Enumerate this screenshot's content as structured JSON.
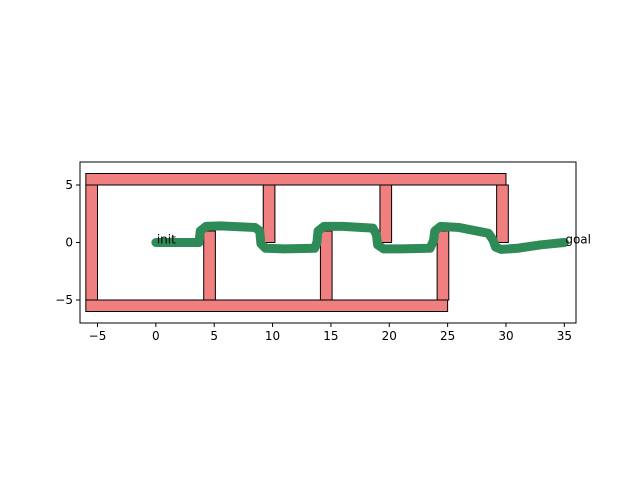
{
  "chart_data": {
    "type": "path-plan",
    "xlim": [
      -6.5,
      36
    ],
    "ylim": [
      -7,
      7
    ],
    "grid": false,
    "x_ticks": [
      -5,
      0,
      5,
      10,
      15,
      20,
      25,
      30,
      35
    ],
    "y_ticks": [
      -5,
      0,
      5
    ],
    "x_tick_labels": [
      "−5",
      "0",
      "5",
      "10",
      "15",
      "20",
      "25",
      "30",
      "35"
    ],
    "y_tick_labels": [
      "−5",
      "0",
      "5"
    ],
    "obstacle_color": "#f08080",
    "path_color": "#2e8b57",
    "obstacles": [
      {
        "x0": -6,
        "y0": 5,
        "x1": 30,
        "y1": 6
      },
      {
        "x0": -6,
        "y0": -6,
        "x1": 25,
        "y1": -5
      },
      {
        "x0": -6,
        "y0": -5,
        "x1": -5,
        "y1": 5
      },
      {
        "x0": 9.2,
        "y0": 0,
        "x1": 10.2,
        "y1": 5
      },
      {
        "x0": 19.2,
        "y0": 0,
        "x1": 20.2,
        "y1": 5
      },
      {
        "x0": 29.2,
        "y0": 0,
        "x1": 30.2,
        "y1": 5
      },
      {
        "x0": 4.1,
        "y0": -5,
        "x1": 5.1,
        "y1": 1
      },
      {
        "x0": 14.1,
        "y0": -5,
        "x1": 15.1,
        "y1": 1
      },
      {
        "x0": 24.1,
        "y0": -5,
        "x1": 25.1,
        "y1": 1
      }
    ],
    "path": [
      [
        0,
        0
      ],
      [
        3.7,
        0
      ],
      [
        3.8,
        1.0
      ],
      [
        4.3,
        1.4
      ],
      [
        5.5,
        1.45
      ],
      [
        8.5,
        1.3
      ],
      [
        8.9,
        1.0
      ],
      [
        9.0,
        -0.1
      ],
      [
        9.4,
        -0.5
      ],
      [
        11,
        -0.55
      ],
      [
        13.6,
        -0.5
      ],
      [
        13.8,
        0.0
      ],
      [
        13.9,
        1.0
      ],
      [
        14.4,
        1.4
      ],
      [
        16,
        1.4
      ],
      [
        18.6,
        1.25
      ],
      [
        18.9,
        0.7
      ],
      [
        19.0,
        -0.2
      ],
      [
        19.5,
        -0.55
      ],
      [
        21,
        -0.55
      ],
      [
        23.5,
        -0.5
      ],
      [
        23.8,
        0.2
      ],
      [
        23.9,
        1.0
      ],
      [
        24.4,
        1.4
      ],
      [
        26,
        1.3
      ],
      [
        28.5,
        0.8
      ],
      [
        28.9,
        0.2
      ],
      [
        29.1,
        -0.4
      ],
      [
        29.6,
        -0.6
      ],
      [
        31,
        -0.5
      ],
      [
        33,
        -0.2
      ],
      [
        35,
        0.0
      ]
    ],
    "annotations": [
      {
        "text": "init",
        "x": 0,
        "y": 0
      },
      {
        "text": "goal",
        "x": 35,
        "y": 0
      }
    ]
  }
}
